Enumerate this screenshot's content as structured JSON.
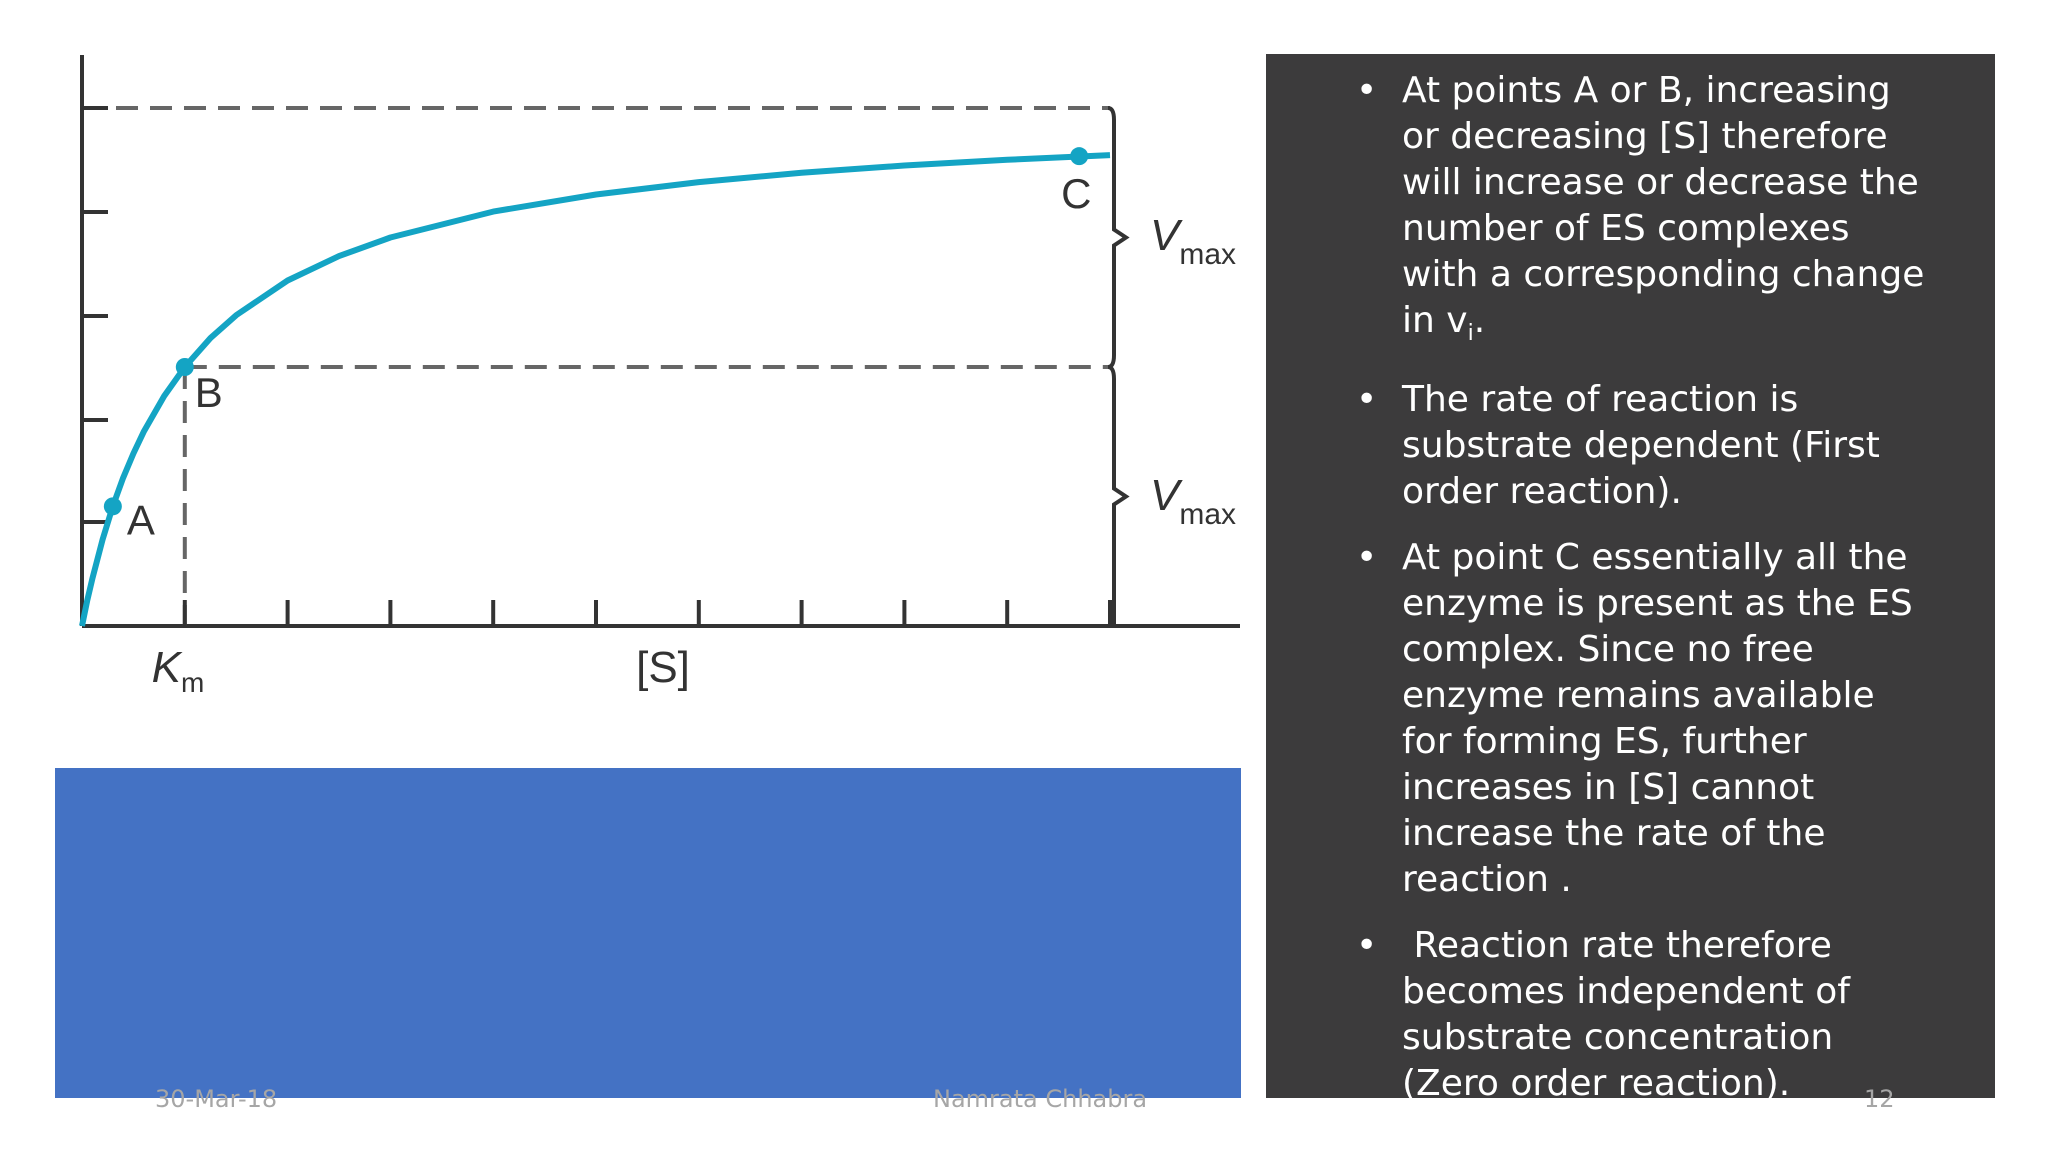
{
  "chart_data": {
    "type": "line",
    "title": "",
    "xlabel": "[S]",
    "ylabel": "",
    "x_tick_labels": [
      "Km"
    ],
    "km_label_main": "K",
    "km_label_sub": "m",
    "vmax_main": "V",
    "vmax_sub": "max",
    "xlim": [
      0,
      10
    ],
    "ylim": [
      0,
      1.05
    ],
    "km": 1,
    "vmax": 1,
    "series": [
      {
        "x": [
          0,
          0.05,
          0.1,
          0.2,
          0.3,
          0.4,
          0.5,
          0.6,
          0.8,
          1,
          1.25,
          1.5,
          2,
          2.5,
          3,
          4,
          5,
          6,
          7,
          8,
          9,
          10
        ],
        "y": [
          0,
          0.048,
          0.091,
          0.167,
          0.231,
          0.286,
          0.333,
          0.375,
          0.444,
          0.5,
          0.556,
          0.6,
          0.667,
          0.714,
          0.75,
          0.8,
          0.833,
          0.857,
          0.875,
          0.889,
          0.9,
          0.909
        ]
      }
    ],
    "points": [
      {
        "label": "A",
        "x": 0.3,
        "y": 0.231
      },
      {
        "label": "B",
        "x": 1,
        "y": 0.5
      },
      {
        "label": "C",
        "x": 9.7,
        "y": 0.907
      }
    ],
    "line_color": "#14a4c4",
    "grid": false
  },
  "bullets": [
    {
      "main": "At points A or B, increasing or decreasing [S] therefore will increase or decrease the number of ES complexes with a corresponding change in v",
      "sub": "i",
      "tail": "."
    },
    {
      "main": "The rate of reaction is substrate dependent  (First order reaction).",
      "sub": "",
      "tail": ""
    },
    {
      "main": "At point C essentially all the enzyme is present as the ES complex. Since no free enzyme remains available for forming ES, further increases in [S] cannot increase the rate of the reaction .",
      "sub": "",
      "tail": ""
    },
    {
      "main": " Reaction rate therefore becomes independent of substrate concentration (Zero order reaction).",
      "sub": "",
      "tail": ""
    }
  ],
  "bullet_char": "•",
  "footer": {
    "date": "30-Mar-18",
    "author": "Namrata Chhabra",
    "page": "12"
  },
  "colors": {
    "panel": "#3c3b3c",
    "blue_box": "#4472c4",
    "curve": "#14a4c4"
  }
}
